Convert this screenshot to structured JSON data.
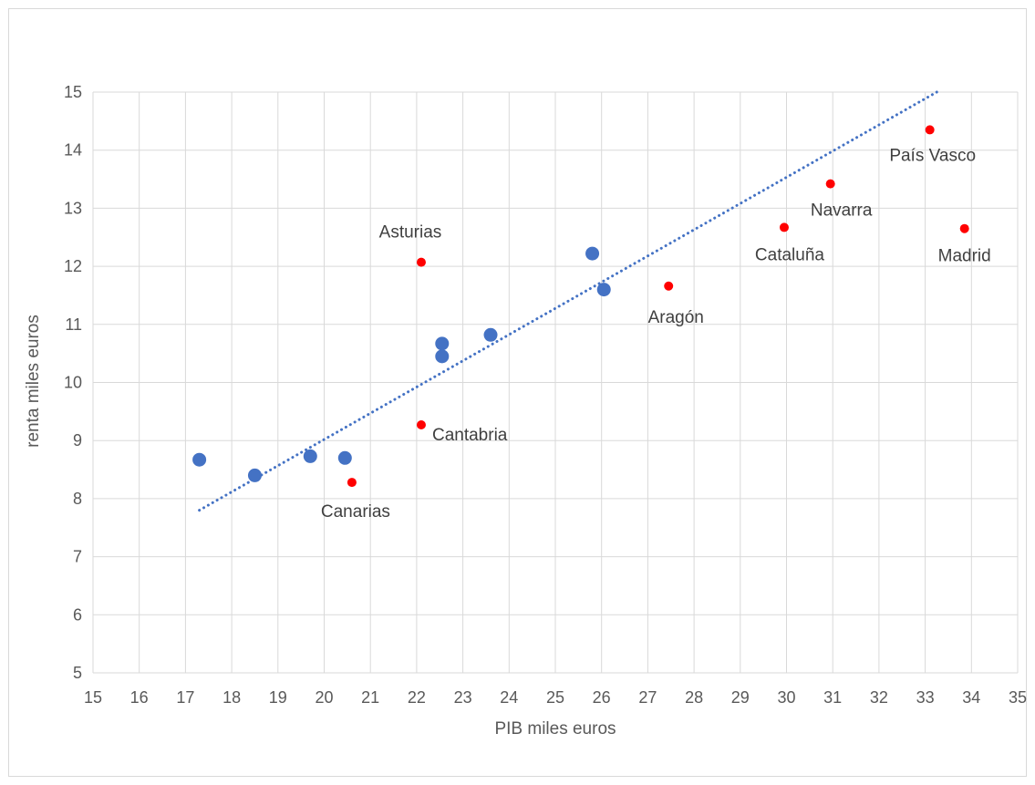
{
  "chart_data": {
    "type": "scatter",
    "title": "",
    "xlabel": "PIB miles euros",
    "ylabel": "renta miles euros",
    "xlim": [
      15,
      35
    ],
    "ylim": [
      5,
      15
    ],
    "xticks": [
      15,
      16,
      17,
      18,
      19,
      20,
      21,
      22,
      23,
      24,
      25,
      26,
      27,
      28,
      29,
      30,
      31,
      32,
      33,
      34,
      35
    ],
    "yticks": [
      5,
      6,
      7,
      8,
      9,
      10,
      11,
      12,
      13,
      14,
      15
    ],
    "grid": true,
    "legend": "none",
    "colors": {
      "blue": "#4472c4",
      "red": "#ff0000",
      "trend": "#4472c4",
      "grid": "#d9d9d9"
    },
    "series": [
      {
        "color": "#4472c4",
        "points": [
          {
            "x": 17.3,
            "y": 8.67
          },
          {
            "x": 18.5,
            "y": 8.4
          },
          {
            "x": 19.7,
            "y": 8.73
          },
          {
            "x": 20.45,
            "y": 8.7
          },
          {
            "x": 22.55,
            "y": 10.67
          },
          {
            "x": 22.55,
            "y": 10.45
          },
          {
            "x": 23.6,
            "y": 10.82
          },
          {
            "x": 25.8,
            "y": 12.22
          },
          {
            "x": 26.05,
            "y": 11.6
          }
        ]
      },
      {
        "color": "#ff0000",
        "points": [
          {
            "x": 22.1,
            "y": 12.07,
            "label": "Asturias"
          },
          {
            "x": 22.1,
            "y": 9.27,
            "label": "Cantabria"
          },
          {
            "x": 20.6,
            "y": 8.28,
            "label": "Canarias"
          },
          {
            "x": 27.45,
            "y": 11.66,
            "label": "Aragón"
          },
          {
            "x": 29.95,
            "y": 12.67,
            "label": "Cataluña"
          },
          {
            "x": 30.95,
            "y": 13.42,
            "label": "Navarra"
          },
          {
            "x": 33.1,
            "y": 14.35,
            "label": "País Vasco"
          },
          {
            "x": 33.85,
            "y": 12.65,
            "label": "Madrid"
          }
        ]
      }
    ],
    "trendline": {
      "type": "linear",
      "style": "dotted",
      "from": {
        "x": 17.3,
        "y": 7.8
      },
      "to": {
        "x": 33.25,
        "y": 15.0
      }
    }
  }
}
